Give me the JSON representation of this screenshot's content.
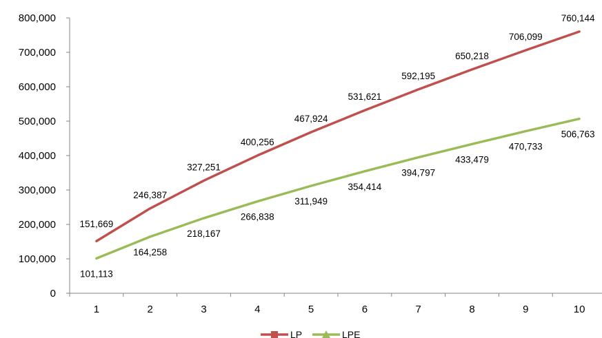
{
  "chart_data": {
    "type": "line",
    "title": "",
    "xlabel": "",
    "ylabel": "",
    "categories": [
      "1",
      "2",
      "3",
      "4",
      "5",
      "6",
      "7",
      "8",
      "9",
      "10"
    ],
    "ylim": [
      0,
      800000
    ],
    "y_ticks": [
      0,
      100000,
      200000,
      300000,
      400000,
      500000,
      600000,
      700000,
      800000
    ],
    "y_tick_labels": [
      "0",
      "100,000",
      "200,000",
      "300,000",
      "400,000",
      "500,000",
      "600,000",
      "700,000",
      "800,000"
    ],
    "grid": false,
    "legend_position": "bottom",
    "series": [
      {
        "name": "LP",
        "color": "#C0504D",
        "marker": "square",
        "label_position": "above",
        "values": [
          151669,
          246387,
          327251,
          400256,
          467924,
          531621,
          592195,
          650218,
          706099,
          760144
        ],
        "labels": [
          "151,669",
          "246,387",
          "327,251",
          "400,256",
          "467,924",
          "531,621",
          "592,195",
          "650,218",
          "706,099",
          "760,144"
        ]
      },
      {
        "name": "LPE",
        "color": "#9BBB59",
        "marker": "triangle",
        "label_position": "below",
        "values": [
          101113,
          164258,
          218167,
          266838,
          311949,
          354414,
          394797,
          433479,
          470733,
          506763
        ],
        "labels": [
          "101,113",
          "164,258",
          "218,167",
          "266,838",
          "311,949",
          "354,414",
          "394,797",
          "433,479",
          "470,733",
          "506,763"
        ]
      }
    ]
  }
}
